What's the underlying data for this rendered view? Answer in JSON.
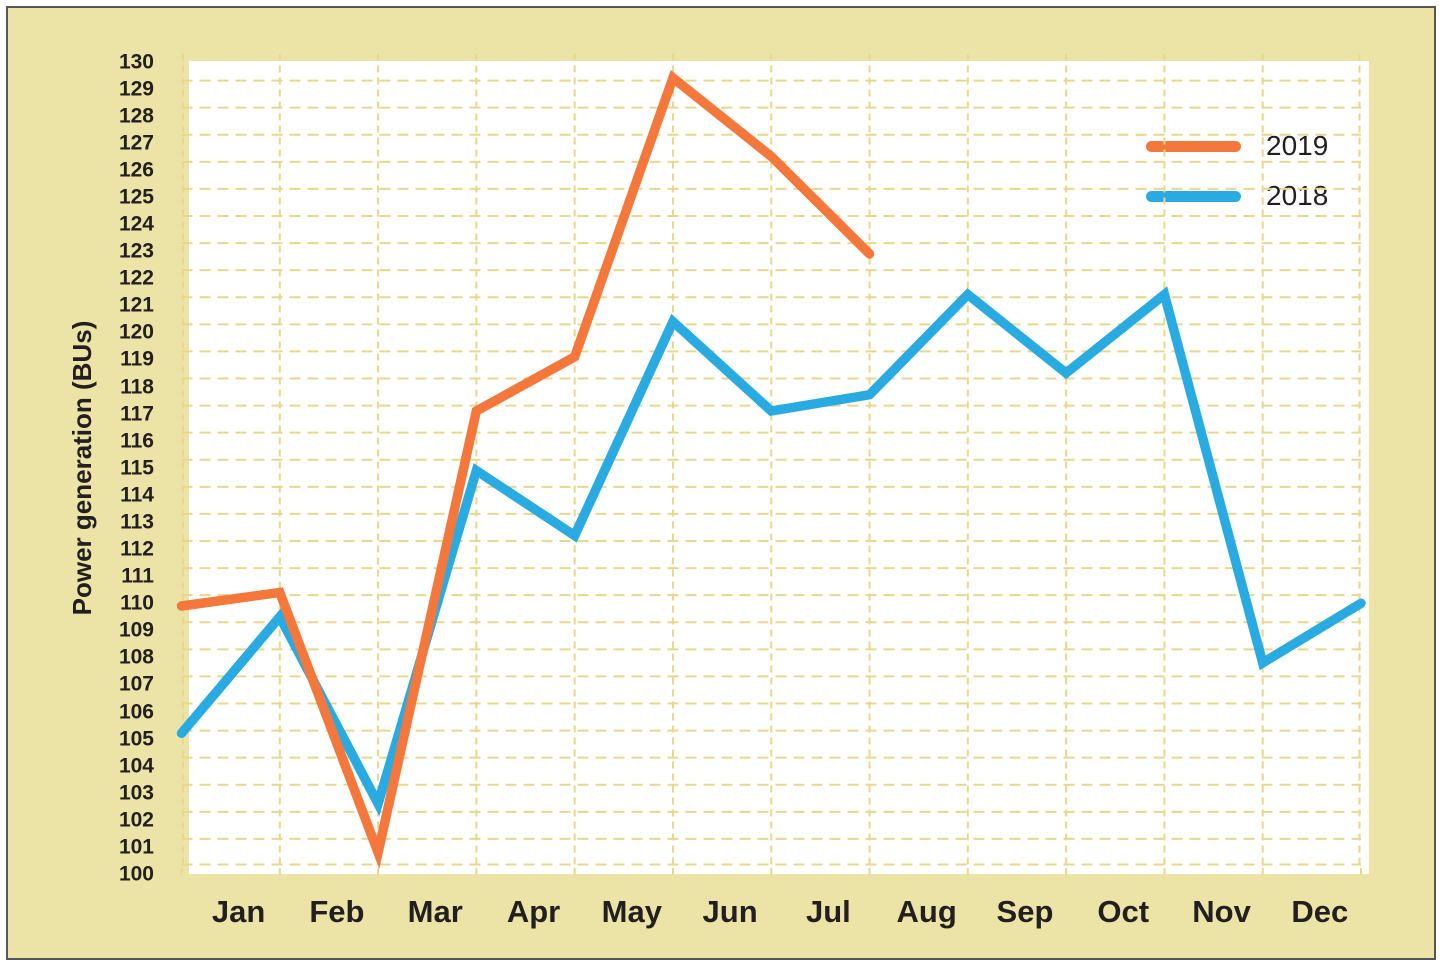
{
  "frame": {
    "background_color": "#ece4a6",
    "plot_background_color": "#ffffff",
    "border_color": "#56565a",
    "gridline_color": "#e8d78c",
    "text_color": "#231f20"
  },
  "y_axis": {
    "title": "Power generation (BUs)",
    "min": 100,
    "max": 130,
    "step": 1,
    "tick_labels": [
      "100",
      "101",
      "102",
      "103",
      "104",
      "105",
      "106",
      "107",
      "108",
      "109",
      "110",
      "111",
      "112",
      "113",
      "114",
      "115",
      "116",
      "117",
      "118",
      "119",
      "120",
      "121",
      "122",
      "123",
      "124",
      "125",
      "126",
      "127",
      "128",
      "129",
      "130"
    ]
  },
  "x_axis": {
    "labels": [
      "Jan",
      "Feb",
      "Mar",
      "Apr",
      "May",
      "Jun",
      "Jul",
      "Aug",
      "Sep",
      "Oct",
      "Nov",
      "Dec"
    ]
  },
  "legend": {
    "items": [
      {
        "label": "2019",
        "color": "#f4783c"
      },
      {
        "label": "2018",
        "color": "#29abe2"
      }
    ]
  },
  "chart_data": {
    "type": "line",
    "title": "",
    "xlabel": "",
    "ylabel": "Power generation (BUs)",
    "categories": [
      "Jan",
      "Feb",
      "Mar",
      "Apr",
      "May",
      "Jun",
      "Jul",
      "Aug",
      "Sep",
      "Oct",
      "Nov",
      "Dec"
    ],
    "ylim": [
      100,
      130
    ],
    "y_tick_step": 1,
    "grid": "dashed yellow grid, both directions, on white plot",
    "legend_position": "top-right inside plot",
    "x_layout": "13 evenly spaced point positions (month boundaries 0..12); month labels centered between gridlines",
    "series": [
      {
        "name": "2019",
        "color": "#f4783c",
        "x": [
          0,
          1,
          2,
          3,
          4,
          5,
          6,
          7
        ],
        "values": [
          109.6,
          110.1,
          100.5,
          116.8,
          118.8,
          129.1,
          126.2,
          122.6
        ]
      },
      {
        "name": "2018",
        "color": "#29abe2",
        "x": [
          0,
          1,
          2,
          3,
          4,
          5,
          6,
          7,
          8,
          9,
          10,
          11,
          12
        ],
        "values": [
          104.9,
          109.2,
          102.3,
          114.6,
          112.2,
          120.1,
          116.8,
          117.4,
          121.1,
          118.2,
          121.1,
          107.5,
          109.7
        ]
      }
    ]
  }
}
